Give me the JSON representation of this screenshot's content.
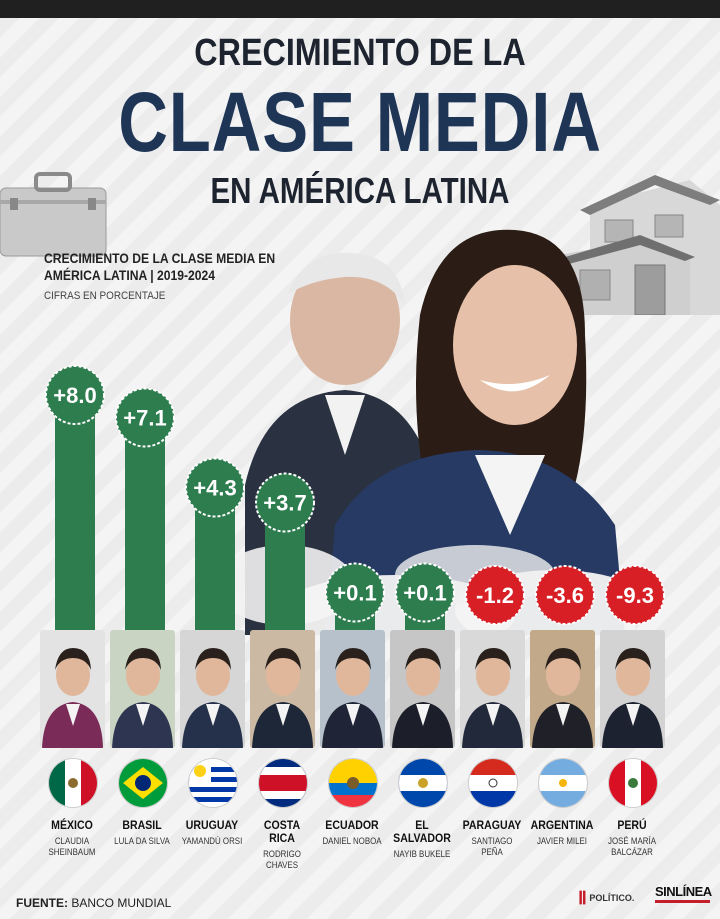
{
  "header": {
    "line1": "CRECIMIENTO DE LA",
    "line2": "CLASE MEDIA",
    "line3": "EN AMÉRICA LATINA"
  },
  "chart_data": {
    "type": "bar",
    "title": "CRECIMIENTO DE LA CLASE MEDIA EN AMÉRICA LATINA | 2019-2024",
    "subtitle": "CIFRAS EN PORCENTAJE",
    "categories": [
      "MÉXICO",
      "BRASIL",
      "URUGUAY",
      "COSTA RICA",
      "ECUADOR",
      "EL SALVADOR",
      "PARAGUAY",
      "ARGENTINA",
      "PERÚ"
    ],
    "values": [
      8.0,
      7.1,
      4.3,
      3.7,
      0.1,
      0.1,
      -1.2,
      -3.6,
      -9.3
    ],
    "labels": [
      "+8.0",
      "+7.1",
      "+4.3",
      "+3.7",
      "+0.1",
      "+0.1",
      "-1.2",
      "-3.6",
      "-9.3"
    ],
    "presidents": [
      "CLAUDIA SHEINBAUM",
      "LULA DA SILVA",
      "YAMANDÚ ORSI",
      "RODRIGO CHAVES",
      "DANIEL NOBOA",
      "NAYIB BUKELE",
      "SANTIAGO PEÑA",
      "JAVIER MILEI",
      "JOSÉ MARÍA BALCÁZAR"
    ],
    "colors": {
      "positive": "#2e7d4f",
      "negative": "#d81f26"
    },
    "grid": false
  },
  "source": {
    "label": "FUENTE:",
    "value": "BANCO MUNDIAL"
  },
  "logos": {
    "politico": "POLÍTICO.",
    "sinlinea": "SINLÍNEA"
  }
}
